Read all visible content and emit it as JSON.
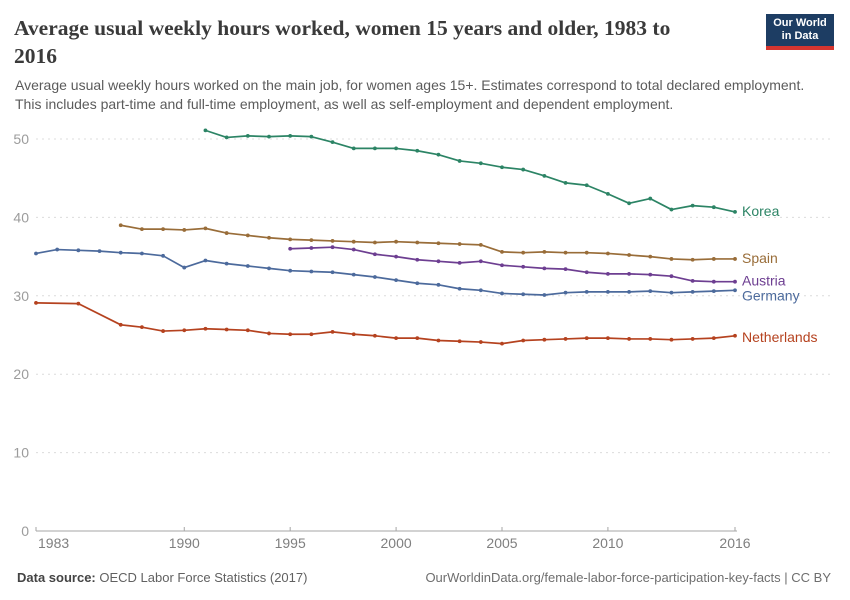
{
  "header": {
    "title_line1": "Average usual weekly hours worked, women 15 years and older, 1983 to",
    "title_line2": "2016",
    "logo": {
      "line1": "Our World",
      "line2": "in Data",
      "bg": "#1d3d63",
      "accent": "#d5352f"
    }
  },
  "subtitle": "Average usual weekly hours worked on the main job, for women ages 15+. Estimates correspond to total declared employment. This includes part-time and full-time employment, as well as self-employment and dependent employment.",
  "footer": {
    "datasource_label": "Data source:",
    "datasource_value": " OECD Labor Force Statistics (2017)",
    "link": "OurWorldinData.org/female-labor-force-participation-key-facts | CC BY"
  },
  "chart_data": {
    "type": "line",
    "title": "Average usual weekly hours worked, women 15 years and older, 1983 to 2016",
    "xlabel": "",
    "ylabel": "",
    "xlim": [
      1983,
      2016
    ],
    "ylim": [
      0,
      50
    ],
    "xticks": [
      1983,
      1990,
      1995,
      2000,
      2005,
      2010,
      2016
    ],
    "yticks": [
      0,
      10,
      20,
      30,
      40,
      50
    ],
    "grid": "horizontal-dashed",
    "legend_position": "labels-at-line-ends",
    "marker": "point",
    "series": [
      {
        "name": "Korea",
        "color": "#2c8465",
        "label_dy": 0,
        "points": [
          [
            1991,
            51.1
          ],
          [
            1992,
            50.2
          ],
          [
            1993,
            50.4
          ],
          [
            1994,
            50.3
          ],
          [
            1995,
            50.4
          ],
          [
            1996,
            50.3
          ],
          [
            1997,
            49.6
          ],
          [
            1998,
            48.8
          ],
          [
            1999,
            48.8
          ],
          [
            2000,
            48.8
          ],
          [
            2001,
            48.5
          ],
          [
            2002,
            48.0
          ],
          [
            2003,
            47.2
          ],
          [
            2004,
            46.9
          ],
          [
            2005,
            46.4
          ],
          [
            2006,
            46.1
          ],
          [
            2007,
            45.3
          ],
          [
            2008,
            44.4
          ],
          [
            2009,
            44.1
          ],
          [
            2010,
            43.0
          ],
          [
            2011,
            41.8
          ],
          [
            2012,
            42.4
          ],
          [
            2013,
            41.0
          ],
          [
            2014,
            41.5
          ],
          [
            2015,
            41.3
          ],
          [
            2016,
            40.7
          ]
        ]
      },
      {
        "name": "Spain",
        "color": "#996d39",
        "label_dy": 0,
        "points": [
          [
            1987,
            39.0
          ],
          [
            1988,
            38.5
          ],
          [
            1989,
            38.5
          ],
          [
            1990,
            38.4
          ],
          [
            1991,
            38.6
          ],
          [
            1992,
            38.0
          ],
          [
            1993,
            37.7
          ],
          [
            1994,
            37.4
          ],
          [
            1995,
            37.2
          ],
          [
            1996,
            37.1
          ],
          [
            1997,
            37.0
          ],
          [
            1998,
            36.9
          ],
          [
            1999,
            36.8
          ],
          [
            2000,
            36.9
          ],
          [
            2001,
            36.8
          ],
          [
            2002,
            36.7
          ],
          [
            2003,
            36.6
          ],
          [
            2004,
            36.5
          ],
          [
            2005,
            35.6
          ],
          [
            2006,
            35.5
          ],
          [
            2007,
            35.6
          ],
          [
            2008,
            35.5
          ],
          [
            2009,
            35.5
          ],
          [
            2010,
            35.4
          ],
          [
            2011,
            35.2
          ],
          [
            2012,
            35.0
          ],
          [
            2013,
            34.7
          ],
          [
            2014,
            34.6
          ],
          [
            2015,
            34.7
          ],
          [
            2016,
            34.7
          ]
        ]
      },
      {
        "name": "Austria",
        "color": "#6d3e91",
        "label_dy": 0,
        "points": [
          [
            1995,
            36.0
          ],
          [
            1996,
            36.1
          ],
          [
            1997,
            36.2
          ],
          [
            1998,
            35.9
          ],
          [
            1999,
            35.3
          ],
          [
            2000,
            35.0
          ],
          [
            2001,
            34.6
          ],
          [
            2002,
            34.4
          ],
          [
            2003,
            34.2
          ],
          [
            2004,
            34.4
          ],
          [
            2005,
            33.9
          ],
          [
            2006,
            33.7
          ],
          [
            2007,
            33.5
          ],
          [
            2008,
            33.4
          ],
          [
            2009,
            33.0
          ],
          [
            2010,
            32.8
          ],
          [
            2011,
            32.8
          ],
          [
            2012,
            32.7
          ],
          [
            2013,
            32.5
          ],
          [
            2014,
            31.9
          ],
          [
            2015,
            31.8
          ],
          [
            2016,
            31.8
          ]
        ]
      },
      {
        "name": "Germany",
        "color": "#4c6a9c",
        "label_dy": 6,
        "points": [
          [
            1983,
            35.4
          ],
          [
            1984,
            35.9
          ],
          [
            1985,
            35.8
          ],
          [
            1986,
            35.7
          ],
          [
            1987,
            35.5
          ],
          [
            1988,
            35.4
          ],
          [
            1989,
            35.1
          ],
          [
            1990,
            33.6
          ],
          [
            1991,
            34.5
          ],
          [
            1992,
            34.1
          ],
          [
            1993,
            33.8
          ],
          [
            1994,
            33.5
          ],
          [
            1995,
            33.2
          ],
          [
            1996,
            33.1
          ],
          [
            1997,
            33.0
          ],
          [
            1998,
            32.7
          ],
          [
            1999,
            32.4
          ],
          [
            2000,
            32.0
          ],
          [
            2001,
            31.6
          ],
          [
            2002,
            31.4
          ],
          [
            2003,
            30.9
          ],
          [
            2004,
            30.7
          ],
          [
            2005,
            30.3
          ],
          [
            2006,
            30.2
          ],
          [
            2007,
            30.1
          ],
          [
            2008,
            30.4
          ],
          [
            2009,
            30.5
          ],
          [
            2010,
            30.5
          ],
          [
            2011,
            30.5
          ],
          [
            2012,
            30.6
          ],
          [
            2013,
            30.4
          ],
          [
            2014,
            30.5
          ],
          [
            2015,
            30.6
          ],
          [
            2016,
            30.7
          ]
        ]
      },
      {
        "name": "Netherlands",
        "color": "#b5421f",
        "label_dy": 2,
        "points": [
          [
            1983,
            29.1
          ],
          [
            1985,
            29.0
          ],
          [
            1987,
            26.3
          ],
          [
            1988,
            26.0
          ],
          [
            1989,
            25.5
          ],
          [
            1990,
            25.6
          ],
          [
            1991,
            25.8
          ],
          [
            1992,
            25.7
          ],
          [
            1993,
            25.6
          ],
          [
            1994,
            25.2
          ],
          [
            1995,
            25.1
          ],
          [
            1996,
            25.1
          ],
          [
            1997,
            25.4
          ],
          [
            1998,
            25.1
          ],
          [
            1999,
            24.9
          ],
          [
            2000,
            24.6
          ],
          [
            2001,
            24.6
          ],
          [
            2002,
            24.3
          ],
          [
            2003,
            24.2
          ],
          [
            2004,
            24.1
          ],
          [
            2005,
            23.9
          ],
          [
            2006,
            24.3
          ],
          [
            2007,
            24.4
          ],
          [
            2008,
            24.5
          ],
          [
            2009,
            24.6
          ],
          [
            2010,
            24.6
          ],
          [
            2011,
            24.5
          ],
          [
            2012,
            24.5
          ],
          [
            2013,
            24.4
          ],
          [
            2014,
            24.5
          ],
          [
            2015,
            24.6
          ],
          [
            2016,
            24.9
          ]
        ]
      }
    ]
  }
}
